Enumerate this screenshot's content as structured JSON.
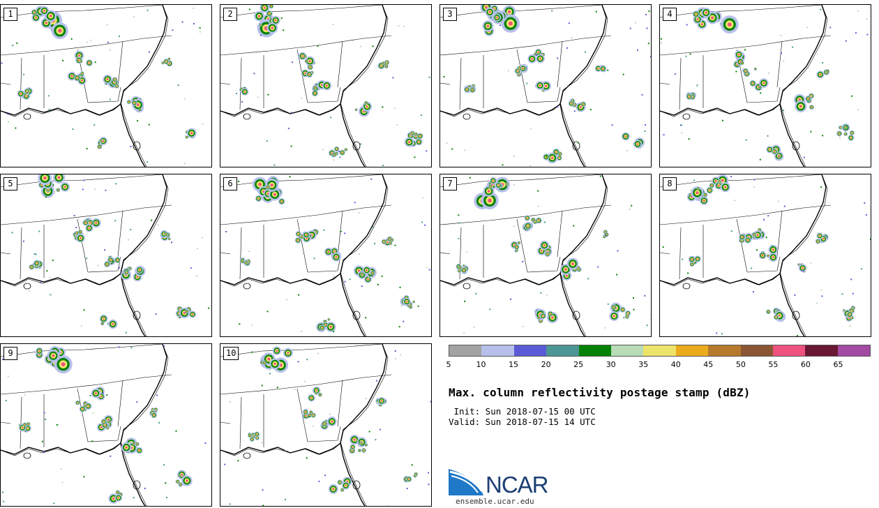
{
  "panels": [
    {
      "label": "1"
    },
    {
      "label": "2"
    },
    {
      "label": "3"
    },
    {
      "label": "4"
    },
    {
      "label": "5"
    },
    {
      "label": "6"
    },
    {
      "label": "7"
    },
    {
      "label": "8"
    },
    {
      "label": "9"
    },
    {
      "label": "10"
    }
  ],
  "colorbar": {
    "colors": [
      "#a3a3a3",
      "#b7c0ea",
      "#5a5ad6",
      "#4d9696",
      "#058205",
      "#b7dcb7",
      "#ede36a",
      "#ecab1d",
      "#b7792c",
      "#8a5634",
      "#ee5380",
      "#6a1734",
      "#a34aa3"
    ],
    "tick_labels": [
      "5",
      "10",
      "15",
      "20",
      "25",
      "30",
      "35",
      "40",
      "45",
      "50",
      "55",
      "60",
      "65"
    ]
  },
  "title": "Max. column reflectivity postage stamp (dBZ)",
  "init": " Init: Sun 2018-07-15 00 UTC",
  "valid": "Valid: Sun 2018-07-15 14 UTC",
  "logo": {
    "text": "NCAR",
    "url": "ensemble.ucar.edu"
  }
}
